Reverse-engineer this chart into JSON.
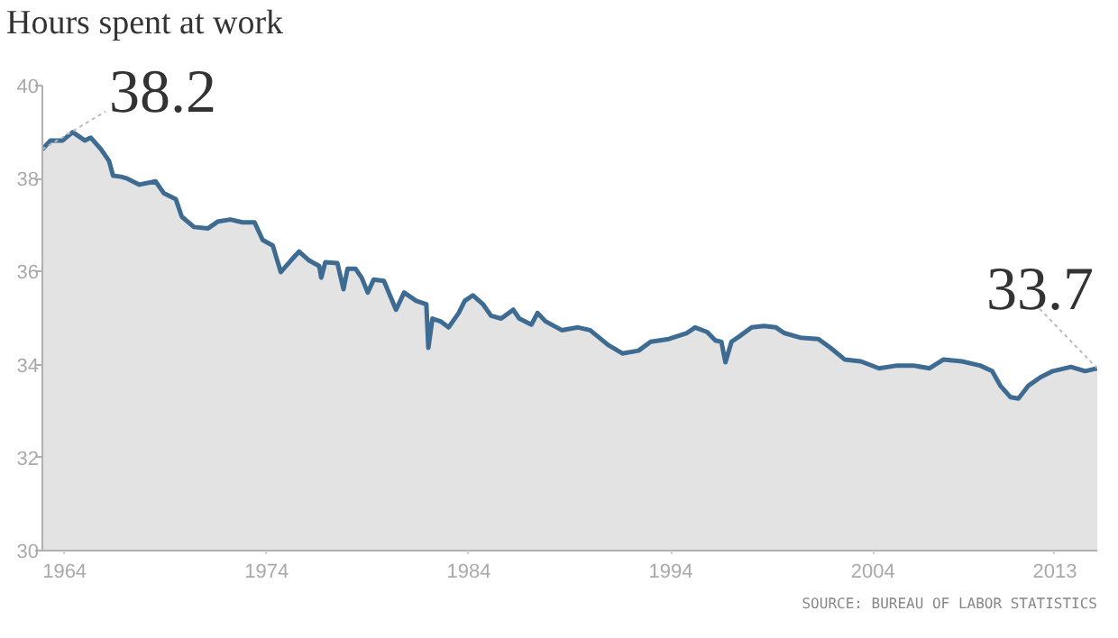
{
  "chart_data": {
    "type": "area",
    "title": "Hours spent at work",
    "x": [
      1962.9,
      1963.3,
      1963.9,
      1964.4,
      1965.0,
      1965.3,
      1965.8,
      1966.2,
      1966.4,
      1966.8,
      1967.1,
      1967.7,
      1968.5,
      1968.9,
      1969.5,
      1969.8,
      1970.4,
      1971.1,
      1971.6,
      1972.2,
      1972.8,
      1973.4,
      1973.8,
      1974.3,
      1974.7,
      1975.2,
      1975.6,
      1976.1,
      1976.6,
      1976.7,
      1976.9,
      1977.5,
      1977.8,
      1978.0,
      1978.4,
      1978.7,
      1979.0,
      1979.3,
      1979.8,
      1980.4,
      1980.8,
      1981.4,
      1981.9,
      1982.0,
      1982.2,
      1982.6,
      1983.0,
      1983.5,
      1983.8,
      1984.2,
      1984.7,
      1985.1,
      1985.6,
      1986.2,
      1986.5,
      1987.1,
      1987.4,
      1987.8,
      1988.6,
      1989.4,
      1990.0,
      1990.9,
      1991.6,
      1992.4,
      1993.0,
      1993.9,
      1994.8,
      1995.2,
      1995.8,
      1996.2,
      1996.5,
      1996.7,
      1997.0,
      1997.4,
      1998.0,
      1998.6,
      1999.2,
      1999.6,
      2000.4,
      2001.3,
      2001.9,
      2002.6,
      2003.4,
      2004.3,
      2005.2,
      2006.0,
      2006.8,
      2007.5,
      2008.4,
      2009.3,
      2009.9,
      2010.3,
      2010.8,
      2011.2,
      2011.7,
      2012.3,
      2012.9,
      2013.8,
      2014.5,
      2015.1
    ],
    "series": [
      {
        "color": "#3d6b92",
        "values": [
          38.63,
          38.82,
          38.82,
          39.0,
          38.82,
          38.88,
          38.63,
          38.38,
          38.06,
          38.04,
          38.0,
          37.87,
          37.94,
          37.69,
          37.56,
          37.18,
          36.96,
          36.93,
          37.08,
          37.12,
          37.06,
          37.06,
          36.68,
          36.56,
          35.99,
          36.24,
          36.43,
          36.24,
          36.12,
          35.87,
          36.2,
          36.18,
          35.62,
          36.06,
          36.06,
          35.87,
          35.55,
          35.83,
          35.8,
          35.18,
          35.55,
          35.37,
          35.3,
          34.36,
          34.99,
          34.93,
          34.8,
          35.11,
          35.37,
          35.49,
          35.3,
          35.05,
          34.99,
          35.18,
          34.99,
          34.86,
          35.11,
          34.93,
          34.74,
          34.8,
          34.74,
          34.42,
          34.24,
          34.3,
          34.49,
          34.55,
          34.68,
          34.8,
          34.7,
          34.52,
          34.49,
          34.05,
          34.49,
          34.61,
          34.8,
          34.83,
          34.8,
          34.68,
          34.58,
          34.55,
          34.36,
          34.11,
          34.07,
          33.92,
          33.98,
          33.98,
          33.92,
          34.11,
          34.07,
          33.98,
          33.86,
          33.55,
          33.3,
          33.27,
          33.55,
          33.73,
          33.86,
          33.95,
          33.86,
          33.92
        ]
      }
    ],
    "xlim": [
      1962.9,
      2015.1
    ],
    "ylim": [
      30,
      40
    ],
    "xticks": [
      1964,
      1974,
      1984,
      1994,
      2004,
      2013
    ],
    "yticks": [
      30,
      32,
      34,
      36,
      38,
      40
    ],
    "grid": false,
    "annotations": [
      {
        "text": "38.2",
        "x": 1962.9,
        "y": 38.63
      },
      {
        "text": "33.7",
        "x": 2015.1,
        "y": 33.92
      },
      "SOURCE: BUREAU OF LABOR STATISTICS"
    ]
  }
}
